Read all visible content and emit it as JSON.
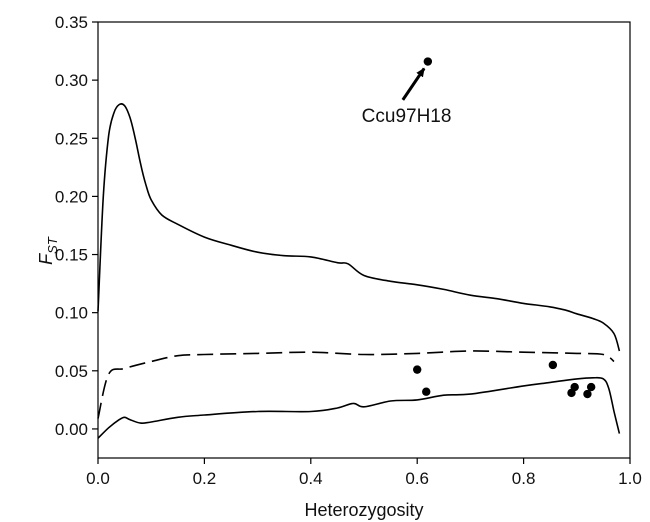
{
  "chart_data": {
    "type": "line",
    "title": "",
    "xlabel": "Heterozygosity",
    "ylabel": "F",
    "ylabel_subscript": "ST",
    "xlim": [
      0.0,
      1.0
    ],
    "ylim": [
      -0.025,
      0.35
    ],
    "x_ticks": [
      0.0,
      0.2,
      0.4,
      0.6,
      0.8,
      1.0
    ],
    "x_tick_labels": [
      "0.0",
      "0.2",
      "0.4",
      "0.6",
      "0.8",
      "1.0"
    ],
    "y_ticks": [
      0.0,
      0.05,
      0.1,
      0.15,
      0.2,
      0.25,
      0.3,
      0.35
    ],
    "y_tick_labels": [
      "0.00",
      "0.05",
      "0.10",
      "0.15",
      "0.20",
      "0.25",
      "0.30",
      "0.35"
    ],
    "grid": false,
    "legend": "none",
    "series": [
      {
        "style": "solid",
        "x": [
          0.0,
          0.01,
          0.02,
          0.03,
          0.04,
          0.05,
          0.06,
          0.07,
          0.08,
          0.09,
          0.1,
          0.12,
          0.15,
          0.2,
          0.25,
          0.3,
          0.35,
          0.4,
          0.45,
          0.47,
          0.5,
          0.55,
          0.6,
          0.65,
          0.7,
          0.75,
          0.8,
          0.85,
          0.88,
          0.9,
          0.93,
          0.95,
          0.97,
          0.98
        ],
        "y": [
          0.101,
          0.2,
          0.252,
          0.272,
          0.279,
          0.278,
          0.268,
          0.25,
          0.228,
          0.21,
          0.197,
          0.184,
          0.176,
          0.165,
          0.158,
          0.152,
          0.149,
          0.148,
          0.143,
          0.142,
          0.132,
          0.127,
          0.124,
          0.12,
          0.115,
          0.112,
          0.108,
          0.105,
          0.102,
          0.099,
          0.095,
          0.091,
          0.082,
          0.067
        ]
      },
      {
        "style": "dashed",
        "x": [
          0.0,
          0.02,
          0.05,
          0.1,
          0.15,
          0.2,
          0.3,
          0.4,
          0.5,
          0.6,
          0.7,
          0.8,
          0.9,
          0.95,
          0.97
        ],
        "y": [
          0.009,
          0.047,
          0.052,
          0.058,
          0.063,
          0.064,
          0.065,
          0.066,
          0.064,
          0.065,
          0.067,
          0.066,
          0.065,
          0.064,
          0.058
        ]
      },
      {
        "style": "solid",
        "x": [
          0.0,
          0.02,
          0.04,
          0.05,
          0.06,
          0.08,
          0.1,
          0.15,
          0.2,
          0.3,
          0.4,
          0.45,
          0.48,
          0.5,
          0.55,
          0.6,
          0.65,
          0.7,
          0.8,
          0.85,
          0.9,
          0.93,
          0.95,
          0.96,
          0.97,
          0.98
        ],
        "y": [
          -0.008,
          0.001,
          0.008,
          0.01,
          0.008,
          0.005,
          0.006,
          0.01,
          0.012,
          0.015,
          0.015,
          0.018,
          0.022,
          0.019,
          0.024,
          0.025,
          0.029,
          0.03,
          0.037,
          0.04,
          0.043,
          0.044,
          0.043,
          0.035,
          0.015,
          -0.004
        ]
      }
    ],
    "points": [
      {
        "x": 0.6,
        "y": 0.051
      },
      {
        "x": 0.617,
        "y": 0.032
      },
      {
        "x": 0.855,
        "y": 0.055
      },
      {
        "x": 0.89,
        "y": 0.031
      },
      {
        "x": 0.896,
        "y": 0.036
      },
      {
        "x": 0.92,
        "y": 0.03
      },
      {
        "x": 0.927,
        "y": 0.036
      },
      {
        "x": 0.62,
        "y": 0.316
      }
    ],
    "annotation": {
      "text": "Ccu97H18",
      "text_x": 0.58,
      "text_y": 0.264,
      "arrow_from": {
        "x": 0.573,
        "y": 0.283
      },
      "arrow_to": {
        "x": 0.613,
        "y": 0.31
      }
    }
  }
}
